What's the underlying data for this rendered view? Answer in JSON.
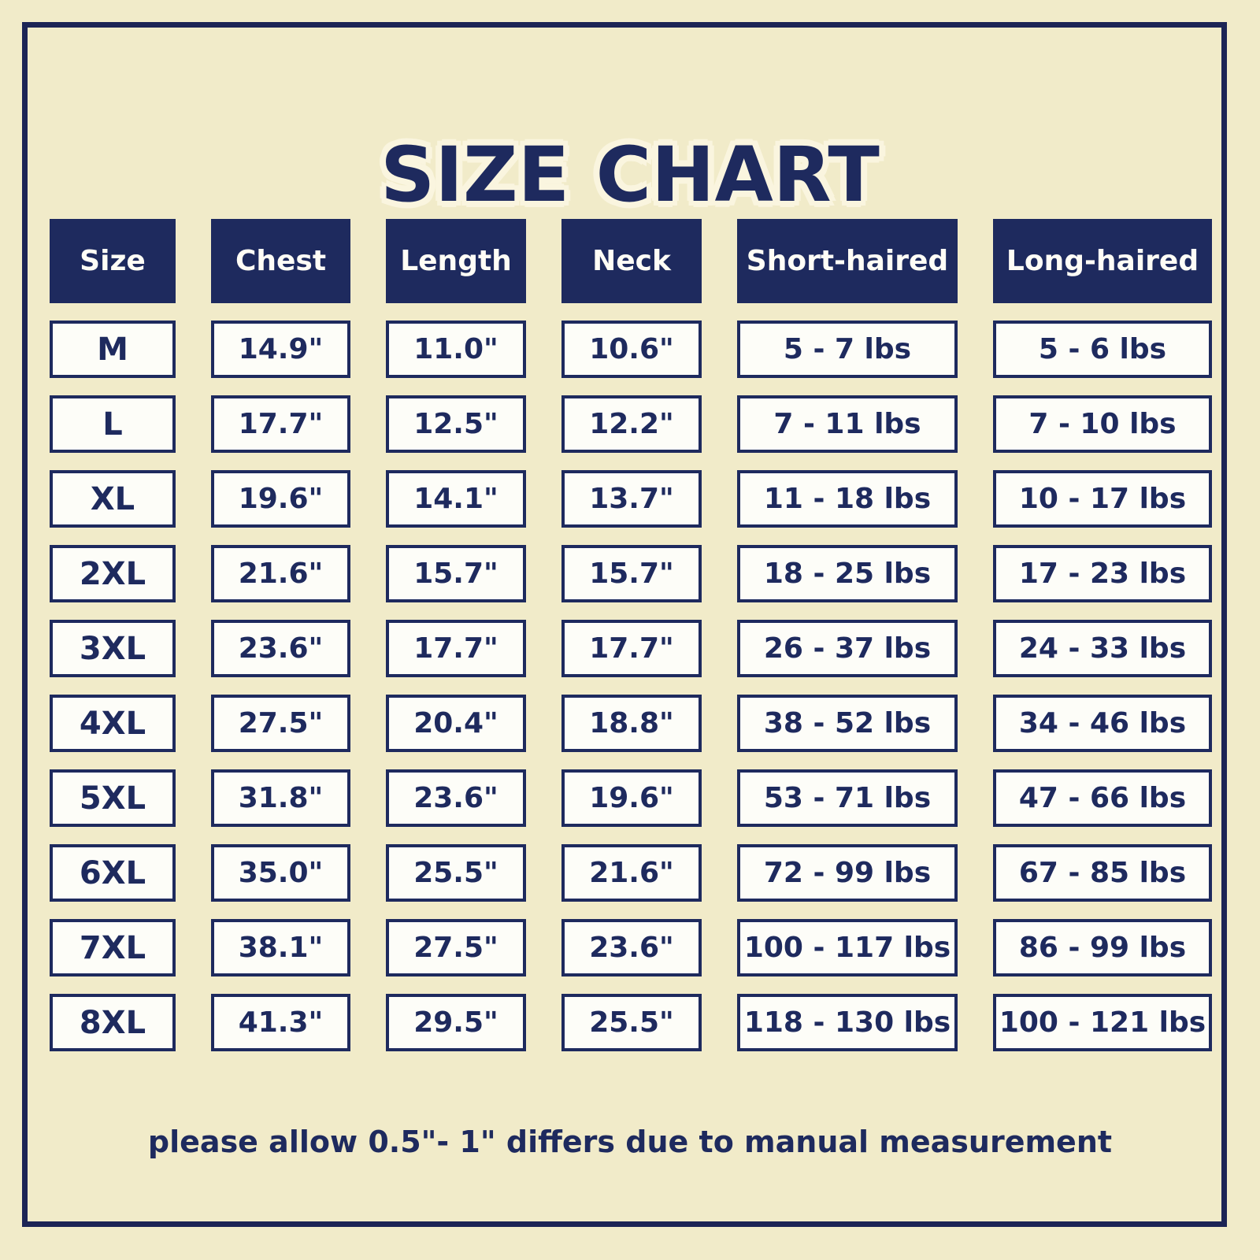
{
  "title": "SIZE CHART",
  "note": "please allow 0.5\"- 1\" differs due to manual measurement",
  "colors": {
    "background": "#f1ebc9",
    "navy": "#1e2a5e",
    "frame_border": "#1c2455",
    "cell_background": "#fdfdf8",
    "header_text": "#fffdf6",
    "title_glow": "#faf5df"
  },
  "chart_data": {
    "type": "table",
    "title": "SIZE CHART",
    "columns": [
      "Size",
      "Chest",
      "Length",
      "Neck",
      "Short-haired",
      "Long-haired"
    ],
    "rows": [
      [
        "M",
        "14.9\"",
        "11.0\"",
        "10.6\"",
        "5 - 7 lbs",
        "5 - 6 lbs"
      ],
      [
        "L",
        "17.7\"",
        "12.5\"",
        "12.2\"",
        "7 - 11 lbs",
        "7 - 10 lbs"
      ],
      [
        "XL",
        "19.6\"",
        "14.1\"",
        "13.7\"",
        "11 - 18 lbs",
        "10 - 17 lbs"
      ],
      [
        "2XL",
        "21.6\"",
        "15.7\"",
        "15.7\"",
        "18 - 25 lbs",
        "17 - 23 lbs"
      ],
      [
        "3XL",
        "23.6\"",
        "17.7\"",
        "17.7\"",
        "26 - 37 lbs",
        "24 - 33 lbs"
      ],
      [
        "4XL",
        "27.5\"",
        "20.4\"",
        "18.8\"",
        "38 - 52 lbs",
        "34 - 46 lbs"
      ],
      [
        "5XL",
        "31.8\"",
        "23.6\"",
        "19.6\"",
        "53 - 71 lbs",
        "47 - 66 lbs"
      ],
      [
        "6XL",
        "35.0\"",
        "25.5\"",
        "21.6\"",
        "72 - 99 lbs",
        "67 - 85 lbs"
      ],
      [
        "7XL",
        "38.1\"",
        "27.5\"",
        "23.6\"",
        "100 - 117 lbs",
        "86 - 99 lbs"
      ],
      [
        "8XL",
        "41.3\"",
        "29.5\"",
        "25.5\"",
        "118 - 130 lbs",
        "100 - 121 lbs"
      ]
    ],
    "footnote": "please allow 0.5\"- 1\" differs due to manual measurement"
  }
}
